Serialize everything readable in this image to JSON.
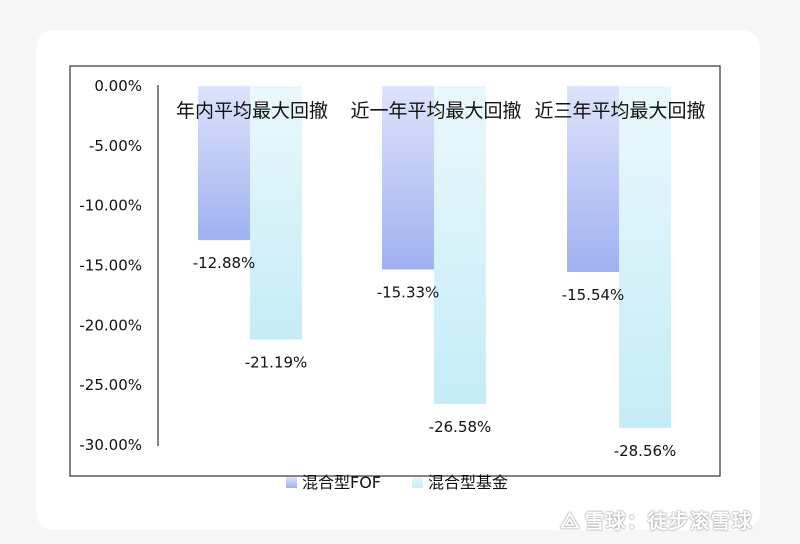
{
  "chart_data": {
    "type": "bar",
    "title": "",
    "categories": [
      "年内平均最大回撤",
      "近一年平均最大回撤",
      "近三年平均最大回撤"
    ],
    "series": [
      {
        "name": "混合型FOF",
        "values": [
          -12.88,
          -15.33,
          -15.54
        ],
        "color": "#9fb1f0",
        "color_light": "#dde3fb"
      },
      {
        "name": "混合型基金",
        "values": [
          -21.19,
          -26.58,
          -28.56
        ],
        "color": "#c5ecf6",
        "color_light": "#e9f8fc"
      }
    ],
    "data_labels": [
      [
        "-12.88%",
        "-15.33%",
        "-15.54%"
      ],
      [
        "-21.19%",
        "-26.58%",
        "-28.56%"
      ]
    ],
    "yticks": [
      "0.00%",
      "-5.00%",
      "-10.00%",
      "-15.00%",
      "-20.00%",
      "-25.00%",
      "-30.00%"
    ],
    "ylim": [
      -30,
      0
    ],
    "grid": false,
    "legend_position": "bottom"
  },
  "watermark": "雪球：徒步滚雪球",
  "watermark_icon": "snowball-logo-icon"
}
